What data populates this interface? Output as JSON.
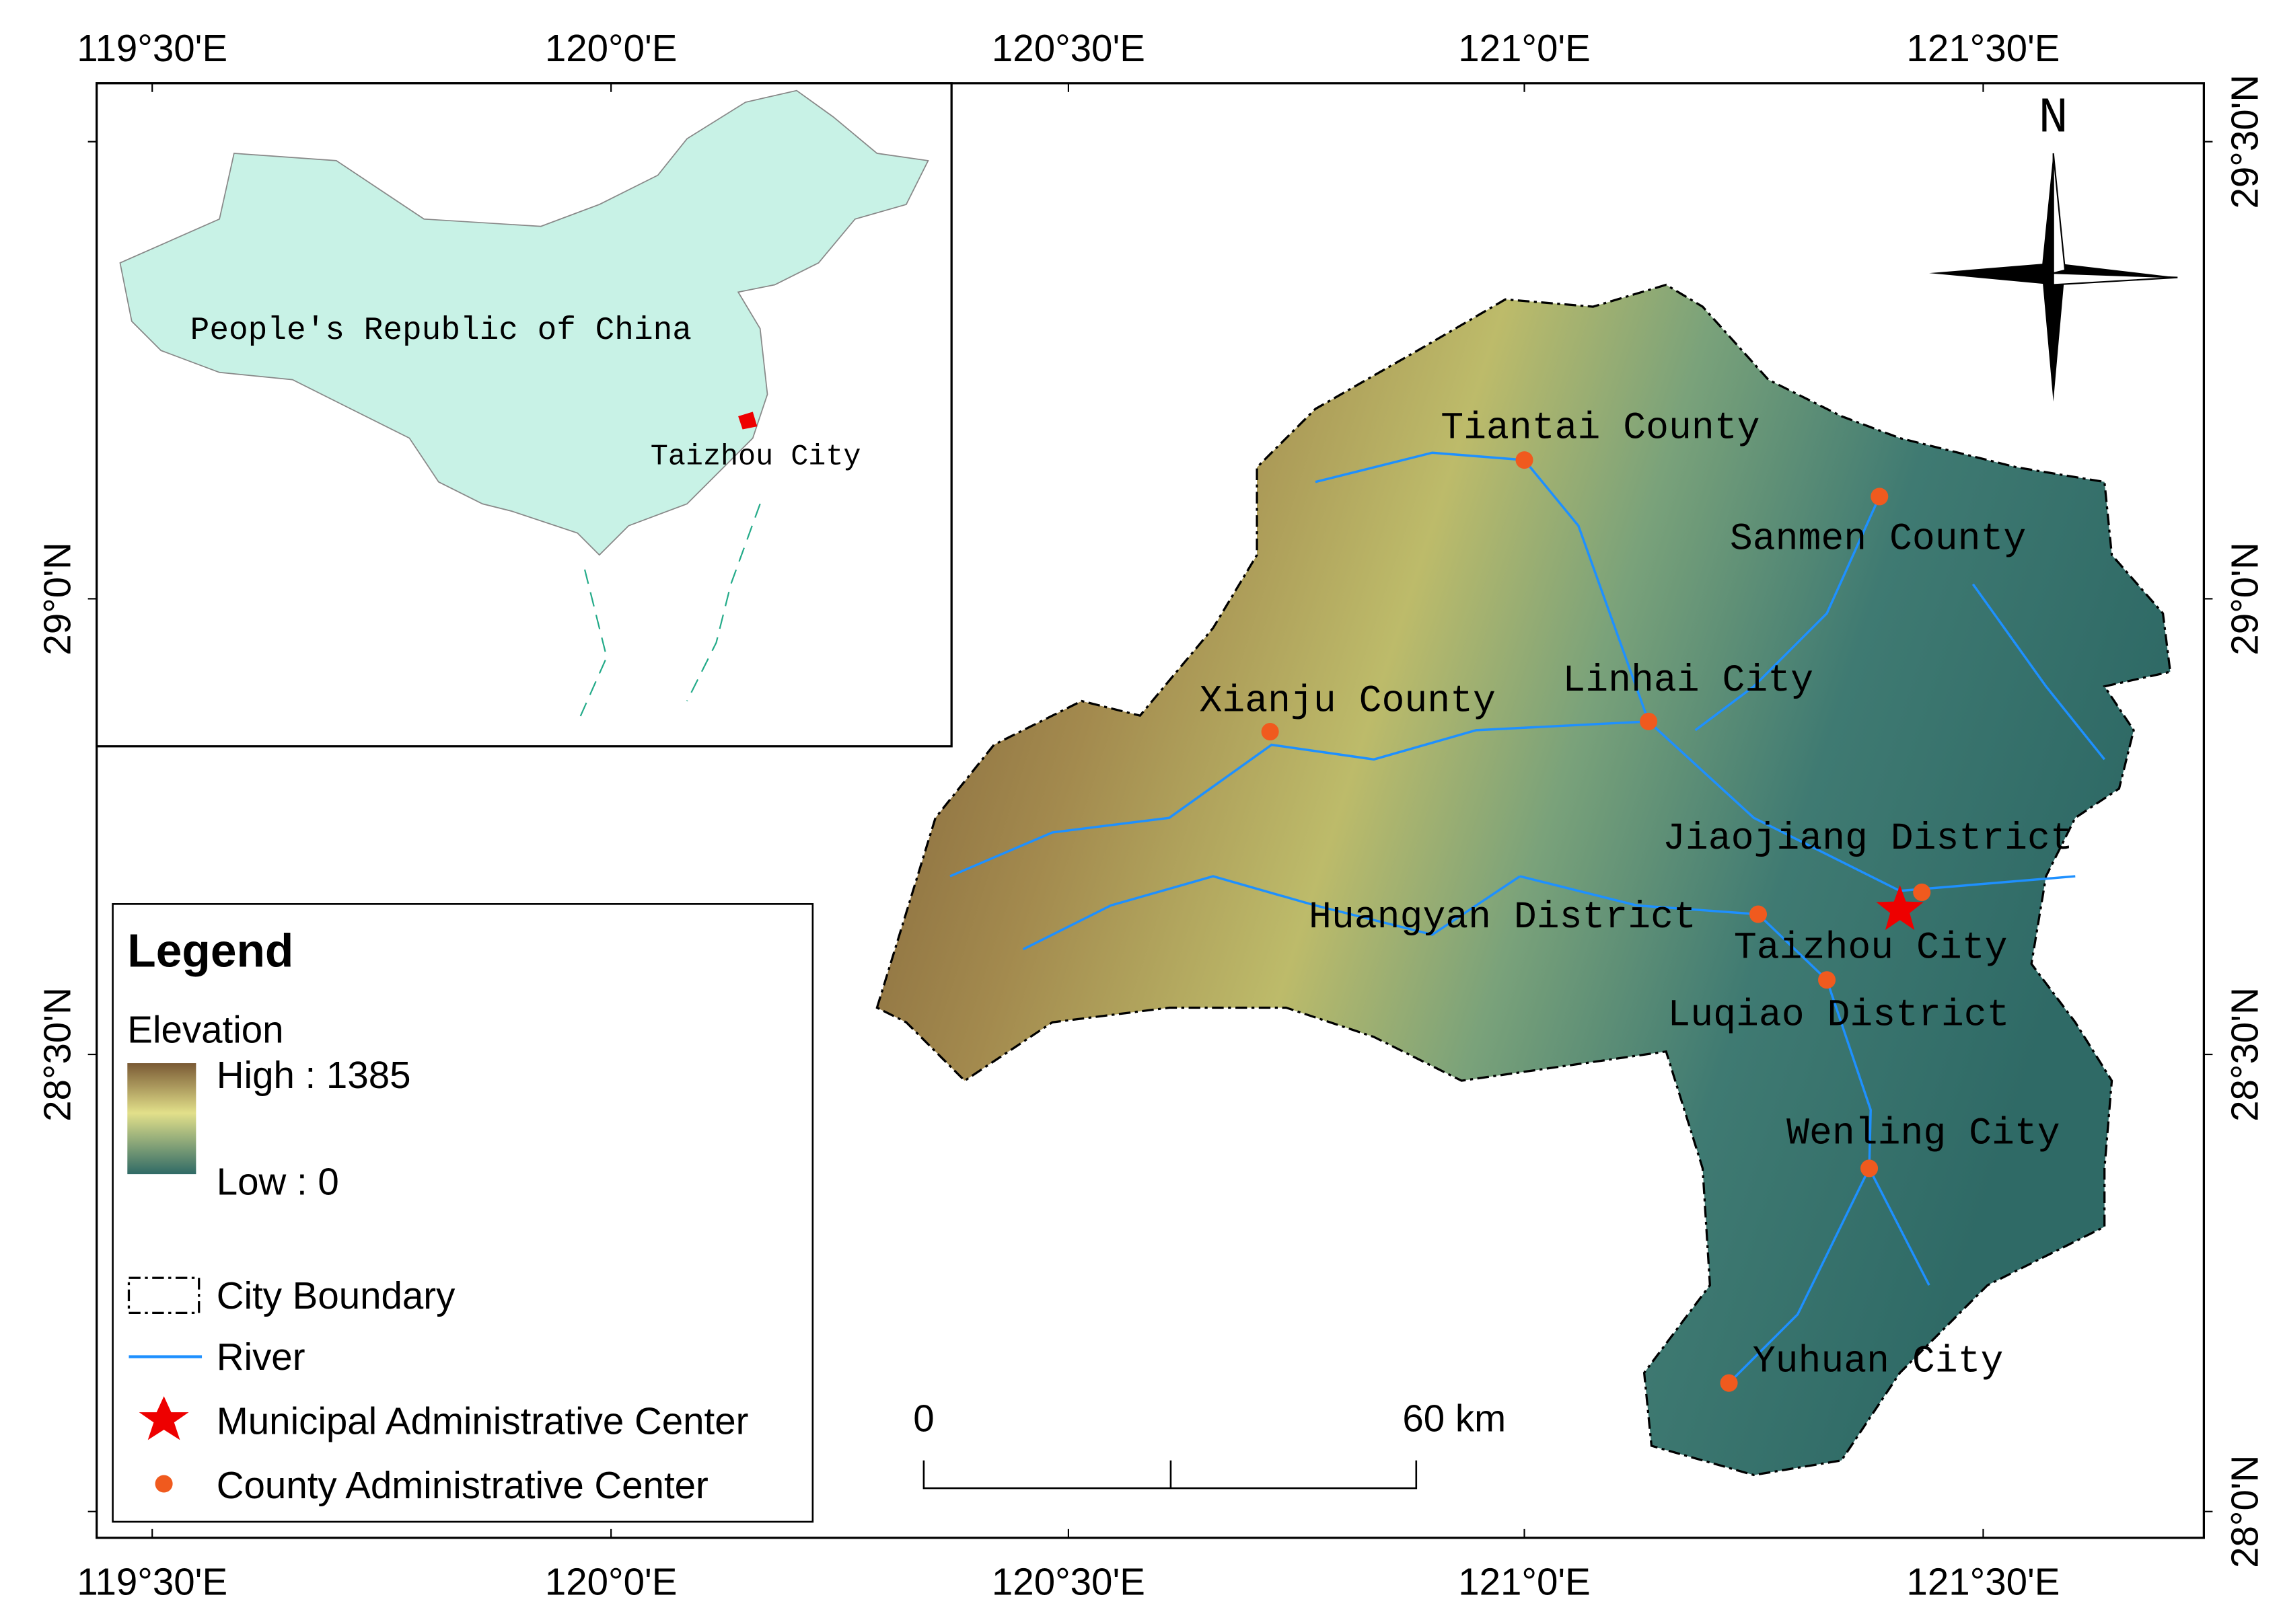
{
  "map": {
    "longitude_labels": [
      "119°30'E",
      "120°0'E",
      "120°30'E",
      "121°0'E",
      "121°30'E"
    ],
    "latitude_labels": [
      "29°30'N",
      "29°0'N",
      "28°30'N",
      "28°0'N"
    ],
    "inset": {
      "country": "People's Republic of China",
      "city": "Taizhou City"
    },
    "north": "N",
    "places": [
      "Tiantai County",
      "Sanmen County",
      "Linhai City",
      "Xianju County",
      "Jiaojiang District",
      "Huangyan District",
      "Taizhou City",
      "Luqiao District",
      "Wenling City",
      "Yuhuan City"
    ],
    "legend": {
      "title": "Legend",
      "elevation_title": "Elevation",
      "high": "High : 1385",
      "low": "Low : 0",
      "items": [
        "City Boundary",
        "River",
        "Municipal Administrative Center",
        "County Administrative Center"
      ]
    },
    "scale_bar": {
      "start": "0",
      "end": "60 km"
    }
  }
}
